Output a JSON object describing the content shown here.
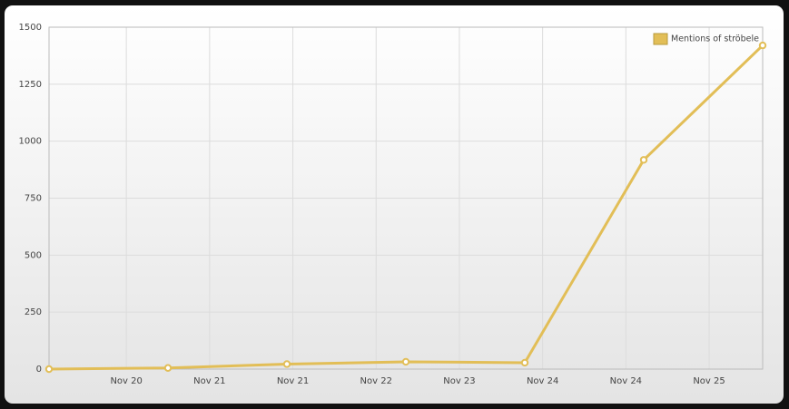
{
  "chart_data": {
    "type": "line",
    "x": [
      0,
      1,
      2,
      3,
      4,
      5,
      6
    ],
    "xlim": [
      0,
      6
    ],
    "xticks": [
      {
        "value": 0.65,
        "label": "Nov 20"
      },
      {
        "value": 1.35,
        "label": "Nov 21"
      },
      {
        "value": 2.05,
        "label": "Nov 21"
      },
      {
        "value": 2.75,
        "label": "Nov 22"
      },
      {
        "value": 3.45,
        "label": "Nov 23"
      },
      {
        "value": 4.15,
        "label": "Nov 24"
      },
      {
        "value": 4.85,
        "label": "Nov 24"
      },
      {
        "value": 5.55,
        "label": "Nov 25"
      }
    ],
    "ylim": [
      0,
      1500
    ],
    "yticks": [
      0,
      250,
      500,
      750,
      1000,
      1250,
      1500
    ],
    "grid": true,
    "legend": "top-right",
    "series": [
      {
        "name": "Mentions of ströbele",
        "color": "#e2be57",
        "values": [
          0,
          5,
          22,
          32,
          28,
          918,
          1420
        ]
      }
    ]
  }
}
